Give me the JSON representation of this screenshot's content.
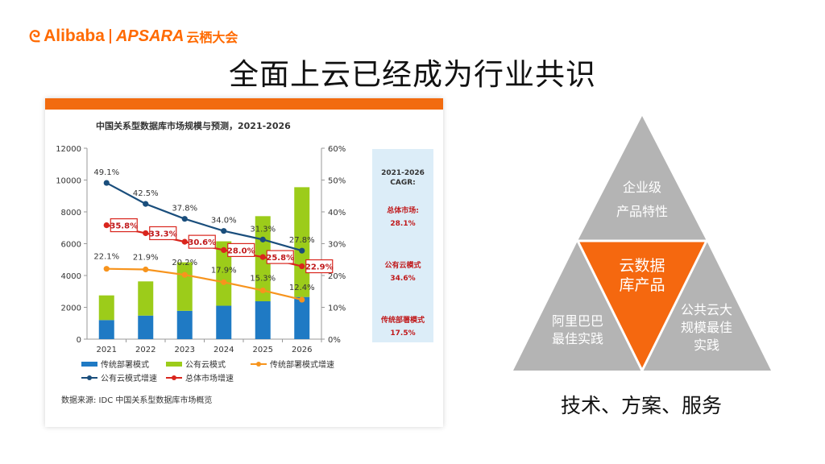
{
  "header": {
    "logo_brand": "Alibaba",
    "logo_apsara": "APSARA",
    "logo_conference": "云栖大会",
    "title": "全面上云已经成为行业共识"
  },
  "chart_data": {
    "type": "bar",
    "title": "中国关系型数据库市场规模与预测，2021-2026",
    "categories": [
      "2021",
      "2022",
      "2023",
      "2024",
      "2025",
      "2026"
    ],
    "stacked": true,
    "ylim": [
      0,
      12000
    ],
    "yticks": [
      "0",
      "2000",
      "4000",
      "6000",
      "8000",
      "10000",
      "12000"
    ],
    "y2lim": [
      0,
      60
    ],
    "y2ticks": [
      "0%",
      "10%",
      "20%",
      "30%",
      "40%",
      "50%",
      "60%"
    ],
    "series": [
      {
        "name": "传统部署模式",
        "type": "bar",
        "axis": "left",
        "color": "#1f7ac4",
        "values": [
          1200,
          1480,
          1780,
          2100,
          2380,
          2650
        ]
      },
      {
        "name": "公有云模式",
        "type": "bar",
        "axis": "left",
        "color": "#9ccc1a",
        "values": [
          1550,
          2150,
          3050,
          4050,
          5350,
          6900
        ]
      },
      {
        "name": "传统部署模式增速",
        "type": "line",
        "axis": "right",
        "color": "#f7941d",
        "values": [
          22.1,
          21.9,
          20.2,
          17.9,
          15.3,
          12.4
        ],
        "labels": [
          "22.1%",
          "21.9%",
          "20.2%",
          "17.9%",
          "15.3%",
          "12.4%"
        ]
      },
      {
        "name": "公有云模式增速",
        "type": "line",
        "axis": "right",
        "color": "#1a4e7c",
        "values": [
          49.1,
          42.5,
          37.8,
          34.0,
          31.3,
          27.8
        ],
        "labels": [
          "49.1%",
          "42.5%",
          "37.8%",
          "34.0%",
          "31.3%",
          "27.8%"
        ]
      },
      {
        "name": "总体市场增速",
        "type": "line",
        "axis": "right",
        "color": "#d9251d",
        "values": [
          35.8,
          33.3,
          30.6,
          28.0,
          25.8,
          22.9
        ],
        "labels": [
          "35.8%",
          "33.3%",
          "30.6%",
          "28.0%",
          "25.8%",
          "22.9%"
        ]
      }
    ],
    "source": "数据来源: IDC 中国关系型数据库市场概览",
    "cagr": {
      "heading": "2021-2026 CAGR:",
      "items": [
        {
          "label": "总体市场:",
          "value": "28.1%"
        },
        {
          "label": "公有云模式",
          "value": "34.6%"
        },
        {
          "label": "传统部署模式",
          "value": "17.5%"
        }
      ]
    }
  },
  "pyramid": {
    "top": [
      "企业级",
      "产品特性"
    ],
    "center": [
      "云数据",
      "库产品"
    ],
    "left": [
      "阿里巴巴",
      "最佳实践"
    ],
    "right": [
      "公共云大",
      "规模最佳",
      "实践"
    ],
    "colors": {
      "grey": "#b4b4b4",
      "orange": "#f5680f"
    }
  },
  "footer": {
    "tagline": "技术、方案、服务"
  }
}
